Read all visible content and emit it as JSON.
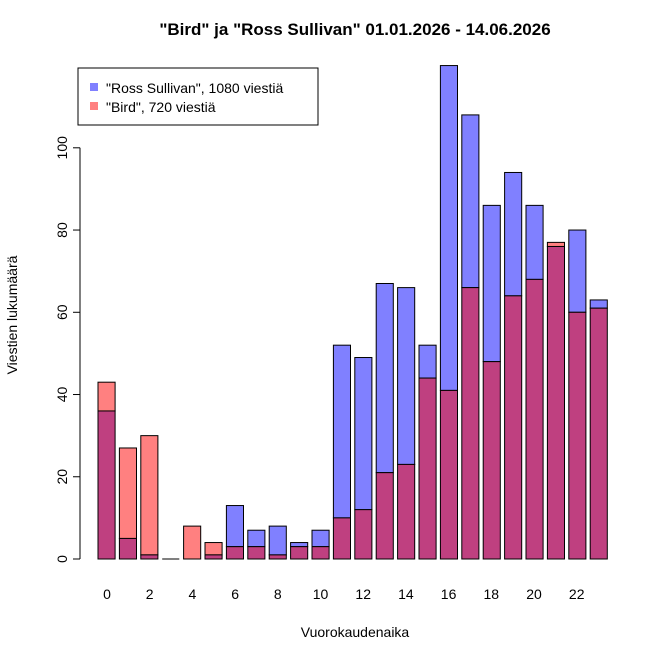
{
  "chart_data": {
    "type": "bar",
    "title": "\"Bird\" ja \"Ross Sullivan\" 01.01.2026 - 14.06.2026",
    "xlabel": "Vuorokaudenaika",
    "ylabel": "Viestien lukumäärä",
    "categories": [
      0,
      1,
      2,
      3,
      4,
      5,
      6,
      7,
      8,
      9,
      10,
      11,
      12,
      13,
      14,
      15,
      16,
      17,
      18,
      19,
      20,
      21,
      22,
      23
    ],
    "x_tick_labels": [
      "0",
      "2",
      "4",
      "6",
      "8",
      "10",
      "12",
      "14",
      "16",
      "18",
      "20",
      "22"
    ],
    "y_tick_labels": [
      "0",
      "20",
      "40",
      "60",
      "80",
      "100"
    ],
    "ylim": [
      0,
      120
    ],
    "grid": false,
    "legend_position": "top-left",
    "series": [
      {
        "name": "\"Ross Sullivan\", 1080 viestiä",
        "color": "#8080ff",
        "values": [
          36,
          5,
          1,
          0,
          0,
          1,
          13,
          7,
          8,
          4,
          7,
          52,
          49,
          67,
          66,
          52,
          120,
          108,
          86,
          94,
          86,
          76,
          80,
          63
        ]
      },
      {
        "name": "\"Bird\", 720 viestiä",
        "color": "#ff8080",
        "values": [
          43,
          27,
          30,
          0,
          8,
          4,
          3,
          3,
          1,
          3,
          3,
          10,
          12,
          21,
          23,
          44,
          41,
          66,
          48,
          64,
          68,
          77,
          60,
          61
        ]
      }
    ],
    "overlap_color": "#bf4080"
  }
}
